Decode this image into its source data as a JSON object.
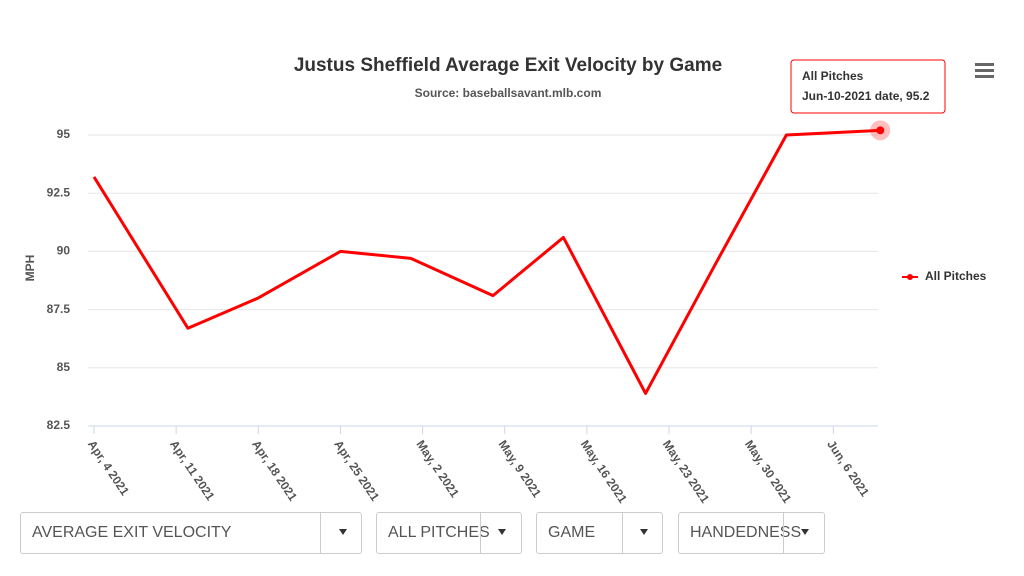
{
  "chart_data": {
    "type": "line",
    "title": "Justus Sheffield Average Exit Velocity by Game",
    "subtitle": "Source: baseballsavant.mlb.com",
    "y_label": "MPH",
    "x": [
      "2021-04-04",
      "2021-04-12",
      "2021-04-18",
      "2021-04-25",
      "2021-05-01",
      "2021-05-08",
      "2021-05-14",
      "2021-05-21",
      "2021-05-27",
      "2021-06-02",
      "2021-06-10"
    ],
    "series": [
      {
        "name": "All Pitches",
        "color": "#ff0000",
        "values": [
          93.2,
          86.7,
          88.0,
          90.0,
          89.7,
          88.1,
          90.6,
          83.9,
          89.5,
          95.0,
          95.2
        ]
      }
    ],
    "xlim": [
      "2021-04-04",
      "2021-06-11"
    ],
    "xticks": [
      {
        "value": "2021-04-04",
        "label": "Apr, 4 2021"
      },
      {
        "value": "2021-04-11",
        "label": "Apr, 11 2021"
      },
      {
        "value": "2021-04-18",
        "label": "Apr, 18 2021"
      },
      {
        "value": "2021-04-25",
        "label": "Apr, 25 2021"
      },
      {
        "value": "2021-05-02",
        "label": "May, 2 2021"
      },
      {
        "value": "2021-05-09",
        "label": "May, 9 2021"
      },
      {
        "value": "2021-05-16",
        "label": "May, 16 2021"
      },
      {
        "value": "2021-05-23",
        "label": "May, 23 2021"
      },
      {
        "value": "2021-05-30",
        "label": "May, 30 2021"
      },
      {
        "value": "2021-06-06",
        "label": "Jun, 6 2021"
      }
    ],
    "ylim": [
      82.5,
      95
    ],
    "yticks": [
      82.5,
      85,
      87.5,
      90,
      92.5,
      95
    ],
    "grid": true,
    "legend": "right",
    "tooltip": {
      "title": "All Pitches",
      "text": "Jun-10-2021 date, 95.2"
    }
  },
  "controls": [
    "AVERAGE EXIT VELOCITY",
    "ALL PITCHES",
    "GAME",
    "HANDEDNESS"
  ]
}
